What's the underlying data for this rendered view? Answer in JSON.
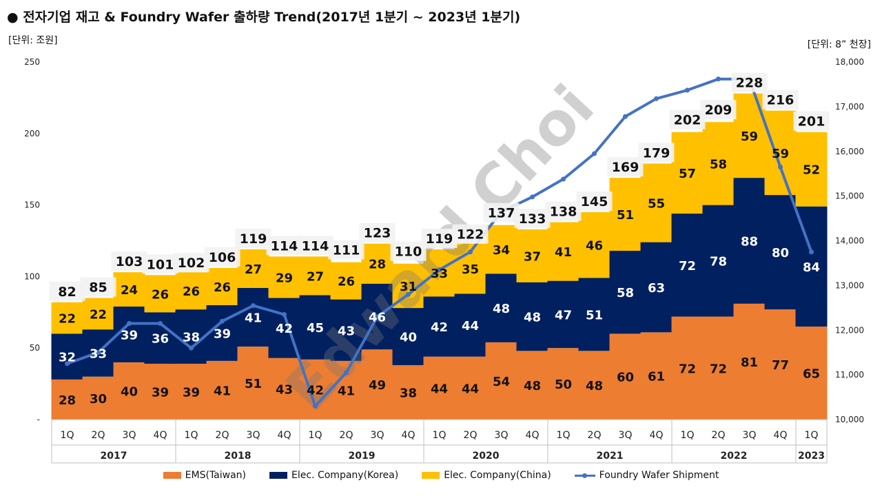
{
  "header": {
    "title": "● 전자기업 재고 & Foundry Wafer 출하량 Trend(2017년 1분기 ~ 2023년 1분기)",
    "unit_left": "[단위: 조원]",
    "unit_right": "[단위: 8” 천장]",
    "watermark": "Edward Choi"
  },
  "chart_data": {
    "type": "bar",
    "stacked": true,
    "title": "전자기업 재고 & Foundry Wafer 출하량 Trend(2017년 1분기 ~ 2023년 1분기)",
    "quarters": [
      "1Q",
      "2Q",
      "3Q",
      "4Q",
      "1Q",
      "2Q",
      "3Q",
      "4Q",
      "1Q",
      "2Q",
      "3Q",
      "4Q",
      "1Q",
      "2Q",
      "3Q",
      "4Q",
      "1Q",
      "2Q",
      "3Q",
      "4Q",
      "1Q",
      "2Q",
      "3Q",
      "4Q",
      "1Q"
    ],
    "year_groups": [
      {
        "label": "2017",
        "count": 4
      },
      {
        "label": "2018",
        "count": 4
      },
      {
        "label": "2019",
        "count": 4
      },
      {
        "label": "2020",
        "count": 4
      },
      {
        "label": "2021",
        "count": 4
      },
      {
        "label": "2022",
        "count": 4
      },
      {
        "label": "2023",
        "count": 1
      }
    ],
    "series": [
      {
        "name": "EMS(Taiwan)",
        "color": "#ED7D31",
        "label_color": "#111111",
        "values": [
          28,
          30,
          40,
          39,
          39,
          41,
          51,
          43,
          42,
          41,
          49,
          38,
          44,
          44,
          54,
          48,
          50,
          48,
          60,
          61,
          72,
          72,
          81,
          77,
          65
        ]
      },
      {
        "name": "Elec. Company(Korea)",
        "color": "#002060",
        "label_color": "#ffffff",
        "values": [
          32,
          33,
          39,
          36,
          38,
          39,
          41,
          42,
          45,
          43,
          46,
          40,
          42,
          44,
          48,
          48,
          47,
          51,
          58,
          63,
          72,
          78,
          88,
          80,
          84
        ]
      },
      {
        "name": "Elec. Company(China)",
        "color": "#FFC000",
        "label_color": "#111111",
        "values": [
          22,
          22,
          24,
          26,
          26,
          26,
          27,
          29,
          27,
          26,
          28,
          31,
          33,
          35,
          34,
          37,
          41,
          46,
          51,
          55,
          57,
          58,
          59,
          59,
          52
        ]
      }
    ],
    "totals": [
      82,
      85,
      103,
      101,
      102,
      106,
      119,
      114,
      114,
      111,
      123,
      110,
      119,
      122,
      137,
      133,
      138,
      145,
      169,
      179,
      202,
      209,
      228,
      216,
      201
    ],
    "line_series": {
      "name": "Foundry Wafer Shipment",
      "color": "#4472C4",
      "values": [
        11250,
        11500,
        12150,
        12150,
        11600,
        12200,
        12550,
        12350,
        10300,
        11050,
        12300,
        12800,
        13350,
        13750,
        14650,
        14980,
        15380,
        15950,
        16780,
        17180,
        17370,
        17620,
        17620,
        15650,
        13750
      ]
    },
    "y_left": {
      "min": 0,
      "max": 250,
      "ticks": [
        "-",
        "50",
        "100",
        "150",
        "200",
        "250"
      ]
    },
    "y_right": {
      "min": 10000,
      "max": 18000,
      "ticks": [
        "10,000",
        "11,000",
        "12,000",
        "13,000",
        "14,000",
        "15,000",
        "16,000",
        "17,000",
        "18,000"
      ]
    }
  },
  "legend": [
    {
      "label": "EMS(Taiwan)",
      "color": "#ED7D31",
      "kind": "bar"
    },
    {
      "label": "Elec. Company(Korea)",
      "color": "#002060",
      "kind": "bar"
    },
    {
      "label": "Elec. Company(China)",
      "color": "#FFC000",
      "kind": "bar"
    },
    {
      "label": "Foundry Wafer Shipment",
      "color": "#4472C4",
      "kind": "line"
    }
  ]
}
